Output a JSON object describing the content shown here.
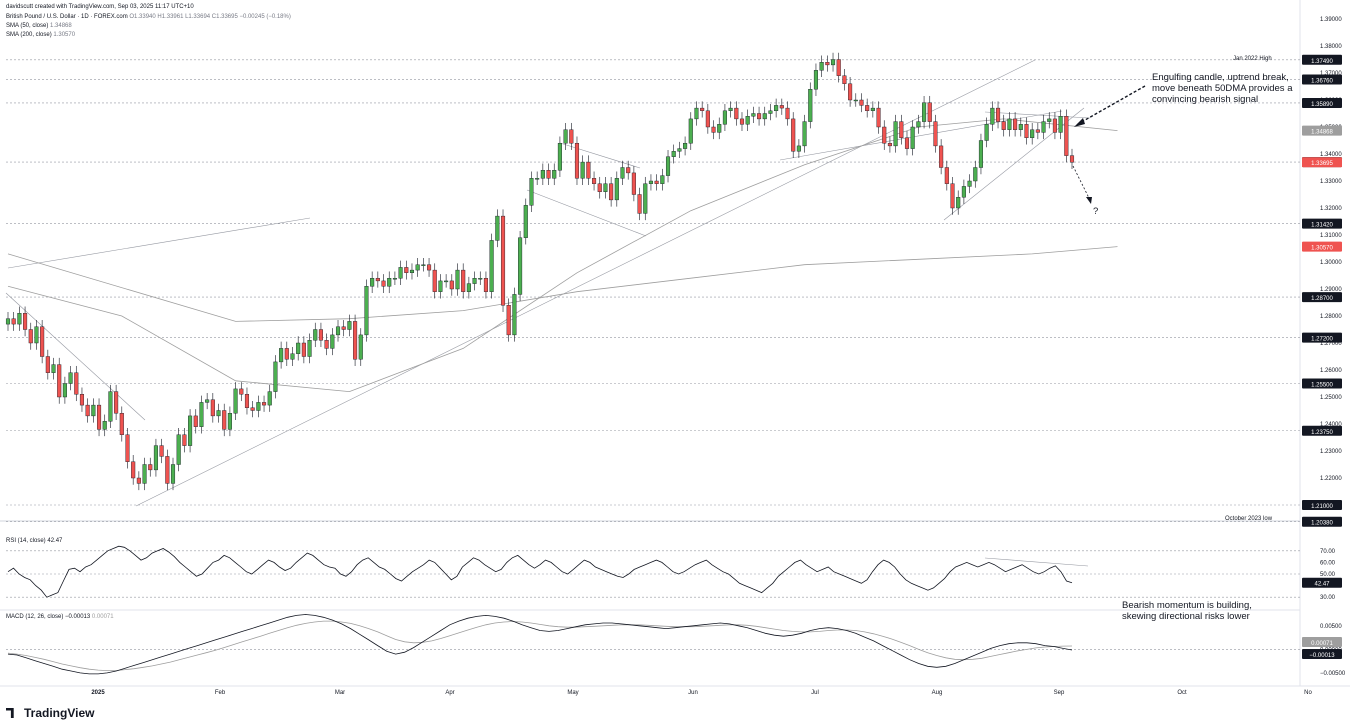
{
  "header": {
    "line1": "davidscutt created with TradingView.com, Sep 03, 2025 11:17 UTC+10",
    "line2_name": "British Pound / U.S. Dollar · 1D · FOREX.com",
    "line2_values": "O1.33940 H1.33961 L1.33694 C1.33695 −0.00245 (−0.18%)",
    "line3_name": "SMA (50, close)",
    "line3_value": "1.34868",
    "line4_name": "SMA (200, close)",
    "line4_value": "1.30570"
  },
  "annotations": {
    "main_note": [
      "Engulfing candle, uptrend break,",
      "move beneath 50DMA provides a",
      "convincing bearish signal"
    ],
    "question": "?",
    "momentum_note": [
      "Bearish momentum is building,",
      "skewing directional risks lower"
    ],
    "jan_high_label": "Jan 2022 High",
    "oct_low_label": "October 2023 low"
  },
  "rsi_label": {
    "name": "RSI (14, close)",
    "value": "42.47"
  },
  "macd_label": {
    "name": "MACD (12, 26, close)",
    "value1": "−0.00013",
    "value2": "0.00071"
  },
  "brand": {
    "name": "TradingView"
  },
  "colors": {
    "up": "#26a69a",
    "up_fill": "#4caf50",
    "down": "#ef5350",
    "grid": "#b2b5be",
    "axis_text": "#131722"
  },
  "chart_data": {
    "type": "candlestick",
    "price_axis": {
      "min": 1.19,
      "max": 1.39,
      "ticks": [
        "1.39000",
        "1.38000",
        "1.37000",
        "1.36000",
        "1.35000",
        "1.34000",
        "1.33000",
        "1.32000",
        "1.31000",
        "1.30000",
        "1.29000",
        "1.28000",
        "1.27000",
        "1.26000",
        "1.25000",
        "1.24000",
        "1.23000",
        "1.22000",
        "1.21000"
      ]
    },
    "time_axis": [
      "2025",
      "Feb",
      "Mar",
      "Apr",
      "May",
      "Jun",
      "Jul",
      "Aug",
      "Sep",
      "Oct",
      "No"
    ],
    "price_levels": [
      {
        "value": 1.3749,
        "label": "1.37490",
        "style": "dotted"
      },
      {
        "value": 1.3676,
        "label": "1.36760",
        "style": "dotted"
      },
      {
        "value": 1.3589,
        "label": "1.35890",
        "style": "dotted"
      },
      {
        "value": 1.337,
        "label": "1.33700",
        "style": "dotted"
      },
      {
        "value": 1.3142,
        "label": "1.31420",
        "style": "dotted"
      },
      {
        "value": 1.287,
        "label": "1.28700",
        "style": "dotted"
      },
      {
        "value": 1.272,
        "label": "1.27200",
        "style": "dotted"
      },
      {
        "value": 1.255,
        "label": "1.25500",
        "style": "dotted"
      },
      {
        "value": 1.2375,
        "label": "1.23750",
        "style": "dotted"
      },
      {
        "value": 1.21,
        "label": "1.21000",
        "style": "dotted"
      },
      {
        "value": 1.2038,
        "label": "1.20380",
        "style": "dotted"
      }
    ],
    "current_price": {
      "value": 1.33695,
      "label": "1.33695",
      "color": "#ef5350"
    },
    "sma50_tag": {
      "value": 1.34868,
      "label": "1.34868",
      "color": "#9e9e9e"
    },
    "sma200_tag": {
      "value": 1.3057,
      "label": "1.30570",
      "color": "#ef5350"
    },
    "candles_close": [
      1.279,
      1.277,
      1.281,
      1.275,
      1.27,
      1.276,
      1.265,
      1.259,
      1.262,
      1.25,
      1.255,
      1.259,
      1.251,
      1.247,
      1.243,
      1.247,
      1.238,
      1.241,
      1.252,
      1.244,
      1.236,
      1.226,
      1.22,
      1.218,
      1.225,
      1.223,
      1.232,
      1.228,
      1.218,
      1.225,
      1.236,
      1.232,
      1.243,
      1.239,
      1.248,
      1.249,
      1.243,
      1.245,
      1.238,
      1.244,
      1.253,
      1.251,
      1.246,
      1.245,
      1.248,
      1.247,
      1.252,
      1.263,
      1.268,
      1.264,
      1.266,
      1.27,
      1.265,
      1.271,
      1.275,
      1.271,
      1.268,
      1.273,
      1.276,
      1.275,
      1.278,
      1.264,
      1.273,
      1.291,
      1.294,
      1.293,
      1.291,
      1.294,
      1.294,
      1.298,
      1.296,
      1.297,
      1.299,
      1.299,
      1.297,
      1.289,
      1.293,
      1.293,
      1.29,
      1.297,
      1.289,
      1.292,
      1.294,
      1.294,
      1.289,
      1.308,
      1.317,
      1.284,
      1.273,
      1.288,
      1.309,
      1.321,
      1.331,
      1.331,
      1.334,
      1.331,
      1.334,
      1.344,
      1.349,
      1.344,
      1.331,
      1.337,
      1.331,
      1.329,
      1.326,
      1.329,
      1.323,
      1.331,
      1.335,
      1.333,
      1.325,
      1.318,
      1.329,
      1.33,
      1.329,
      1.332,
      1.339,
      1.341,
      1.342,
      1.344,
      1.353,
      1.357,
      1.356,
      1.35,
      1.348,
      1.351,
      1.356,
      1.357,
      1.353,
      1.351,
      1.354,
      1.355,
      1.353,
      1.355,
      1.356,
      1.358,
      1.357,
      1.353,
      1.341,
      1.343,
      1.352,
      1.364,
      1.371,
      1.374,
      1.373,
      1.375,
      1.369,
      1.366,
      1.36,
      1.36,
      1.358,
      1.356,
      1.357,
      1.35,
      1.344,
      1.343,
      1.352,
      1.346,
      1.342,
      1.35,
      1.352,
      1.359,
      1.352,
      1.343,
      1.335,
      1.329,
      1.32,
      1.324,
      1.328,
      1.33,
      1.335,
      1.345,
      1.351,
      1.357,
      1.352,
      1.349,
      1.353,
      1.349,
      1.351,
      1.346,
      1.349,
      1.348,
      1.352,
      1.353,
      1.348,
      1.354,
      1.3394,
      1.33695
    ],
    "sma50": [
      [
        0,
        1.291
      ],
      [
        20,
        1.28
      ],
      [
        40,
        1.256
      ],
      [
        60,
        1.252
      ],
      [
        80,
        1.268
      ],
      [
        100,
        1.296
      ],
      [
        120,
        1.319
      ],
      [
        140,
        1.336
      ],
      [
        160,
        1.35
      ],
      [
        175,
        1.353
      ],
      [
        195,
        1.34868
      ]
    ],
    "sma200": [
      [
        0,
        1.303
      ],
      [
        40,
        1.278
      ],
      [
        60,
        1.279
      ],
      [
        80,
        1.282
      ],
      [
        100,
        1.289
      ],
      [
        120,
        1.294
      ],
      [
        140,
        1.299
      ],
      [
        160,
        1.301
      ],
      [
        180,
        1.303
      ],
      [
        195,
        1.3057
      ]
    ],
    "rsi": {
      "levels": [
        70,
        50,
        30
      ],
      "tick_labels": [
        "70.00",
        "60.00",
        "50.00",
        "40.00",
        "30.00"
      ],
      "current": 42.47,
      "values": [
        52,
        55,
        50,
        47,
        45,
        40,
        36,
        30,
        32,
        34,
        44,
        54,
        55,
        52,
        56,
        58,
        62,
        66,
        70,
        72,
        74,
        73,
        70,
        66,
        62,
        64,
        68,
        70,
        72,
        69,
        65,
        60,
        56,
        52,
        48,
        50,
        55,
        60,
        62,
        66,
        64,
        60,
        56,
        52,
        50,
        54,
        58,
        62,
        60,
        56,
        53,
        55,
        60,
        64,
        68,
        66,
        62,
        58,
        56,
        55,
        50,
        48,
        52,
        58,
        62,
        64,
        60,
        56,
        54,
        50,
        46,
        44,
        48,
        52,
        55,
        58,
        62,
        60,
        55,
        50,
        45,
        48,
        56,
        60,
        64,
        62,
        58,
        55,
        52,
        54,
        60,
        64,
        66,
        62,
        58,
        55,
        58,
        62,
        60,
        56,
        52,
        50,
        54,
        58,
        62,
        60,
        56,
        54,
        52,
        50,
        48,
        47,
        50,
        54,
        56,
        58,
        60,
        62,
        60,
        56,
        52,
        50,
        52,
        55,
        58,
        60,
        62,
        58,
        55,
        52,
        50,
        46,
        42,
        40,
        38,
        36,
        34,
        38,
        42,
        48,
        52,
        56,
        60,
        62,
        58,
        55,
        52,
        54,
        56,
        52,
        50,
        48,
        46,
        44,
        42,
        45,
        52,
        58,
        62,
        60,
        56,
        50,
        45,
        42,
        40,
        38,
        36,
        38,
        42,
        46,
        52,
        56,
        58,
        60,
        58,
        56,
        58,
        60,
        58,
        55,
        52,
        54,
        56,
        58,
        55,
        52,
        50,
        52,
        55,
        57,
        52,
        44,
        42.47
      ]
    },
    "macd": {
      "tick_labels": [
        "0.00500",
        "0.00000",
        "−0.00500"
      ],
      "macd_current": -0.00013,
      "signal_current": 0.00071,
      "macd": [
        -0.001,
        -0.0012,
        -0.0018,
        -0.0024,
        -0.003,
        -0.0036,
        -0.0042,
        -0.0046,
        -0.005,
        -0.0052,
        -0.0052,
        -0.005,
        -0.0046,
        -0.004,
        -0.0034,
        -0.0028,
        -0.0022,
        -0.0016,
        -0.001,
        -0.0004,
        0.0002,
        0.0008,
        0.0014,
        0.002,
        0.0026,
        0.0032,
        0.0038,
        0.0044,
        0.005,
        0.0056,
        0.0062,
        0.0068,
        0.0072,
        0.0074,
        0.0072,
        0.0068,
        0.0062,
        0.0054,
        0.0044,
        0.0032,
        0.002,
        0.0008,
        -0.0004,
        -0.001,
        -0.0006,
        0.0004,
        0.0016,
        0.0028,
        0.004,
        0.0052,
        0.006,
        0.0066,
        0.007,
        0.0072,
        0.007,
        0.0066,
        0.006,
        0.0052,
        0.0046,
        0.004,
        0.0038,
        0.004,
        0.0044,
        0.0048,
        0.0052,
        0.0054,
        0.0056,
        0.0056,
        0.0054,
        0.0052,
        0.005,
        0.0048,
        0.0046,
        0.0044,
        0.0046,
        0.0048,
        0.005,
        0.0052,
        0.0054,
        0.0056,
        0.0054,
        0.005,
        0.0046,
        0.004,
        0.0034,
        0.003,
        0.0028,
        0.003,
        0.0034,
        0.004,
        0.0044,
        0.0046,
        0.0044,
        0.004,
        0.0034,
        0.0026,
        0.0018,
        0.0008,
        -0.0002,
        -0.0012,
        -0.0022,
        -0.003,
        -0.0036,
        -0.0038,
        -0.0036,
        -0.003,
        -0.0022,
        -0.0014,
        -0.0006,
        0.0002,
        0.0008,
        0.0012,
        0.0014,
        0.0014,
        0.0012,
        0.0008,
        0.0006,
        0.0002,
        -0.00013
      ],
      "signal": [
        -0.0008,
        -0.001,
        -0.0013,
        -0.0017,
        -0.0021,
        -0.0026,
        -0.0031,
        -0.0035,
        -0.0039,
        -0.0042,
        -0.0044,
        -0.0045,
        -0.0045,
        -0.0043,
        -0.0041,
        -0.0038,
        -0.0035,
        -0.0031,
        -0.0027,
        -0.0022,
        -0.0017,
        -0.0012,
        -0.0007,
        -0.0002,
        0.0004,
        0.001,
        0.0016,
        0.0022,
        0.0028,
        0.0034,
        0.004,
        0.0046,
        0.0051,
        0.0055,
        0.0058,
        0.006,
        0.006,
        0.0058,
        0.0055,
        0.005,
        0.0044,
        0.0037,
        0.0029,
        0.0021,
        0.0016,
        0.0014,
        0.0015,
        0.0018,
        0.0023,
        0.0029,
        0.0035,
        0.0041,
        0.0047,
        0.0052,
        0.0056,
        0.0058,
        0.0059,
        0.0058,
        0.0056,
        0.0053,
        0.005,
        0.0048,
        0.0047,
        0.0047,
        0.0048,
        0.0049,
        0.005,
        0.0051,
        0.0052,
        0.0052,
        0.0052,
        0.0051,
        0.005,
        0.0049,
        0.0048,
        0.0048,
        0.0048,
        0.0049,
        0.005,
        0.0051,
        0.0052,
        0.0052,
        0.0051,
        0.0049,
        0.0046,
        0.0043,
        0.004,
        0.0038,
        0.0037,
        0.0037,
        0.0038,
        0.004,
        0.0041,
        0.0041,
        0.004,
        0.0037,
        0.0033,
        0.0028,
        0.0022,
        0.0015,
        0.0008,
        0.0,
        -0.0007,
        -0.0013,
        -0.0018,
        -0.0021,
        -0.0022,
        -0.0021,
        -0.0019,
        -0.0015,
        -0.0011,
        -0.0007,
        -0.0003,
        0.0,
        0.0003,
        0.0005,
        0.0006,
        0.0007,
        0.00071
      ]
    }
  }
}
